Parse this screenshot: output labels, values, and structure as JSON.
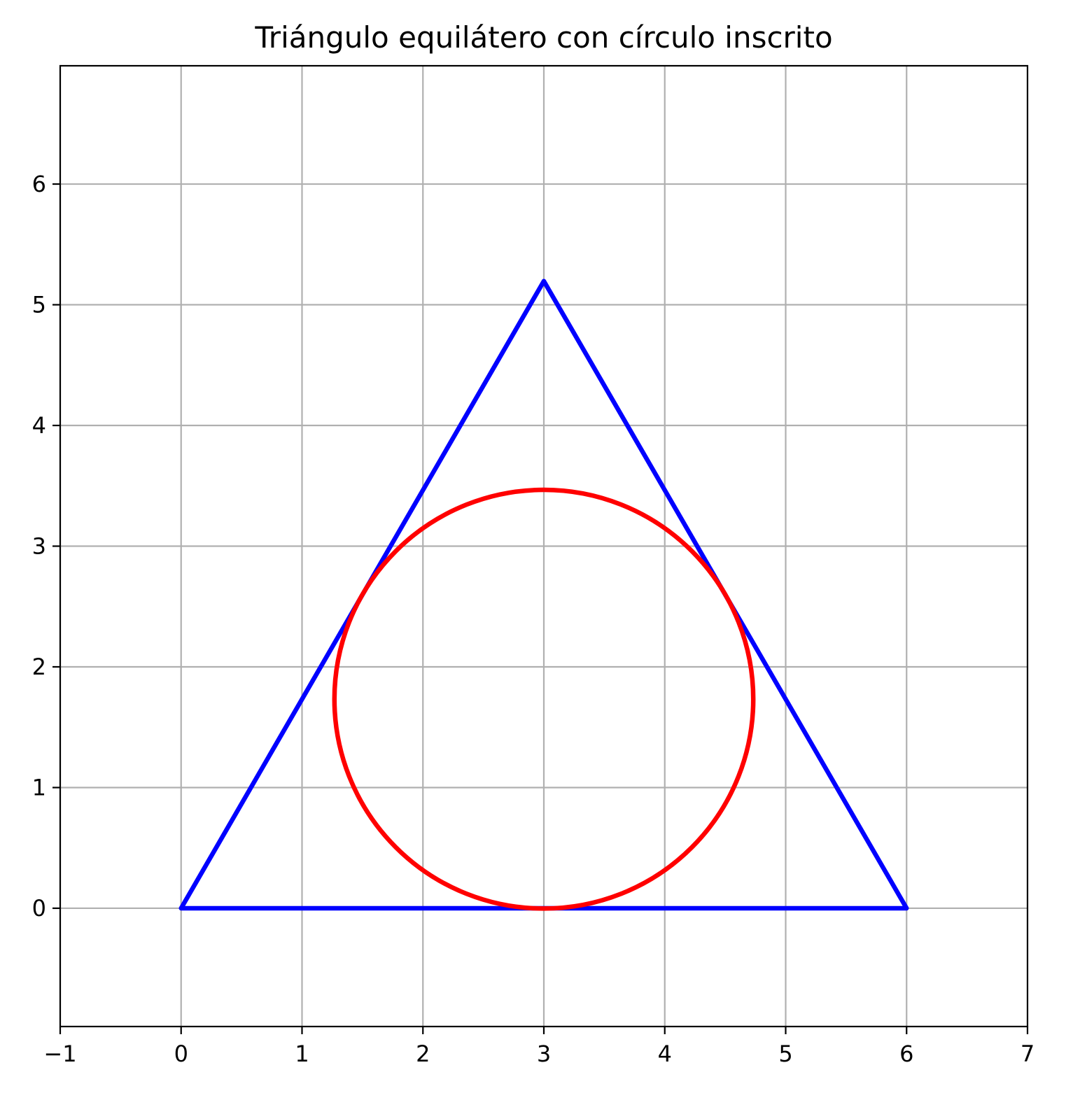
{
  "chart_data": {
    "type": "line",
    "title": "Triángulo equilátero con círculo inscrito",
    "xlabel": "",
    "ylabel": "",
    "xlim": [
      -1,
      7
    ],
    "ylim": [
      -0.98,
      6.98
    ],
    "grid": true,
    "aspect": "equal",
    "xticks": [
      -1,
      0,
      1,
      2,
      3,
      4,
      5,
      6,
      7
    ],
    "xtick_labels": [
      "−1",
      "0",
      "1",
      "2",
      "3",
      "4",
      "5",
      "6",
      "7"
    ],
    "yticks": [
      0,
      1,
      2,
      3,
      4,
      5,
      6
    ],
    "ytick_labels": [
      "0",
      "1",
      "2",
      "3",
      "4",
      "5",
      "6"
    ],
    "series": [
      {
        "kind": "polygon",
        "color": "#0000ff",
        "x": [
          0,
          6,
          3,
          0
        ],
        "y": [
          0,
          0,
          5.196,
          0
        ]
      },
      {
        "kind": "circle",
        "color": "#ff0000",
        "center": [
          3,
          1.732
        ],
        "radius": 1.732
      }
    ]
  }
}
